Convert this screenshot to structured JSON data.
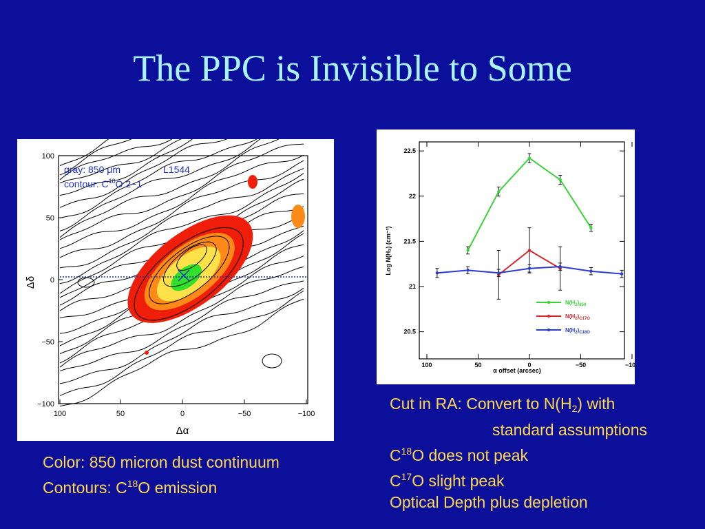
{
  "slide": {
    "title": "The PPC is Invisible to Some"
  },
  "contour_map": {
    "legend_line1_a": "gray: 850 ",
    "legend_line1_unit": "μm",
    "legend_line1_b": "L1544",
    "legend_line2_a": "contour: C",
    "legend_line2_sup": "18",
    "legend_line2_b": "O 2−1",
    "x_label": "Δα",
    "y_label": "Δδ",
    "x_ticks": [
      "100",
      "50",
      "0",
      "−50",
      "−100"
    ],
    "y_ticks": [
      "100",
      "50",
      "0",
      "−50",
      "−100"
    ],
    "colors": {
      "red": "#ee1e0a",
      "orange": "#ff8a18",
      "yellow": "#ffe14a",
      "green": "#30e02a",
      "cut": "#1a2fc0"
    }
  },
  "chart_data": {
    "type": "line",
    "xlabel": "α offset (arcsec)",
    "ylabel": "Log N(H₂) (cm⁻²)",
    "xlim": [
      100,
      -100
    ],
    "ylim": [
      20.2,
      22.6
    ],
    "x_ticks": [
      "100",
      "50",
      "0",
      "−50",
      "−100"
    ],
    "y_ticks": [
      "20.5",
      "21",
      "21.5",
      "22",
      "22.5"
    ],
    "series": [
      {
        "name": "N(H2)850",
        "legend_main": "N(H",
        "legend_sub1": "2",
        "legend_close": ")",
        "legend_sub2": "850",
        "color": "#3ad33a",
        "x": [
          60,
          30,
          0,
          -30,
          -60
        ],
        "y": [
          21.4,
          22.05,
          22.42,
          22.18,
          21.65
        ],
        "err": [
          0.04,
          0.05,
          0.05,
          0.05,
          0.04
        ]
      },
      {
        "name": "N(H2)C17O",
        "legend_main": "N(H",
        "legend_sub1": "2",
        "legend_close": ")",
        "legend_sub2": "C17O",
        "color": "#d8272b",
        "x": [
          30,
          0,
          -30
        ],
        "y": [
          21.13,
          21.4,
          21.2
        ],
        "err": [
          0.27,
          0.25,
          0.24
        ]
      },
      {
        "name": "N(H2)C18O",
        "legend_main": "N(H",
        "legend_sub1": "2",
        "legend_close": ")",
        "legend_sub2": "C18O",
        "color": "#2a3bd0",
        "x": [
          90,
          60,
          30,
          0,
          -30,
          -60,
          -90
        ],
        "y": [
          21.15,
          21.18,
          21.15,
          21.2,
          21.22,
          21.17,
          21.14
        ],
        "err": [
          0.05,
          0.04,
          0.04,
          0.04,
          0.04,
          0.04,
          0.04
        ]
      }
    ]
  },
  "left_caption": {
    "line1": "Color: 850 micron dust continuum",
    "line2_a": "Contours: C",
    "line2_sup": "18",
    "line2_b": "O emission"
  },
  "right_caption": {
    "line1_a": "Cut in RA:  Convert to N(H",
    "line1_sub": "2",
    "line1_b": ") with",
    "line2": "standard assumptions",
    "line3_a": "C",
    "line3_sup": "18",
    "line3_b": "O does not peak",
    "line4_a": "C",
    "line4_sup": "17",
    "line4_b": "O slight peak",
    "line5": "Optical Depth plus depletion"
  }
}
